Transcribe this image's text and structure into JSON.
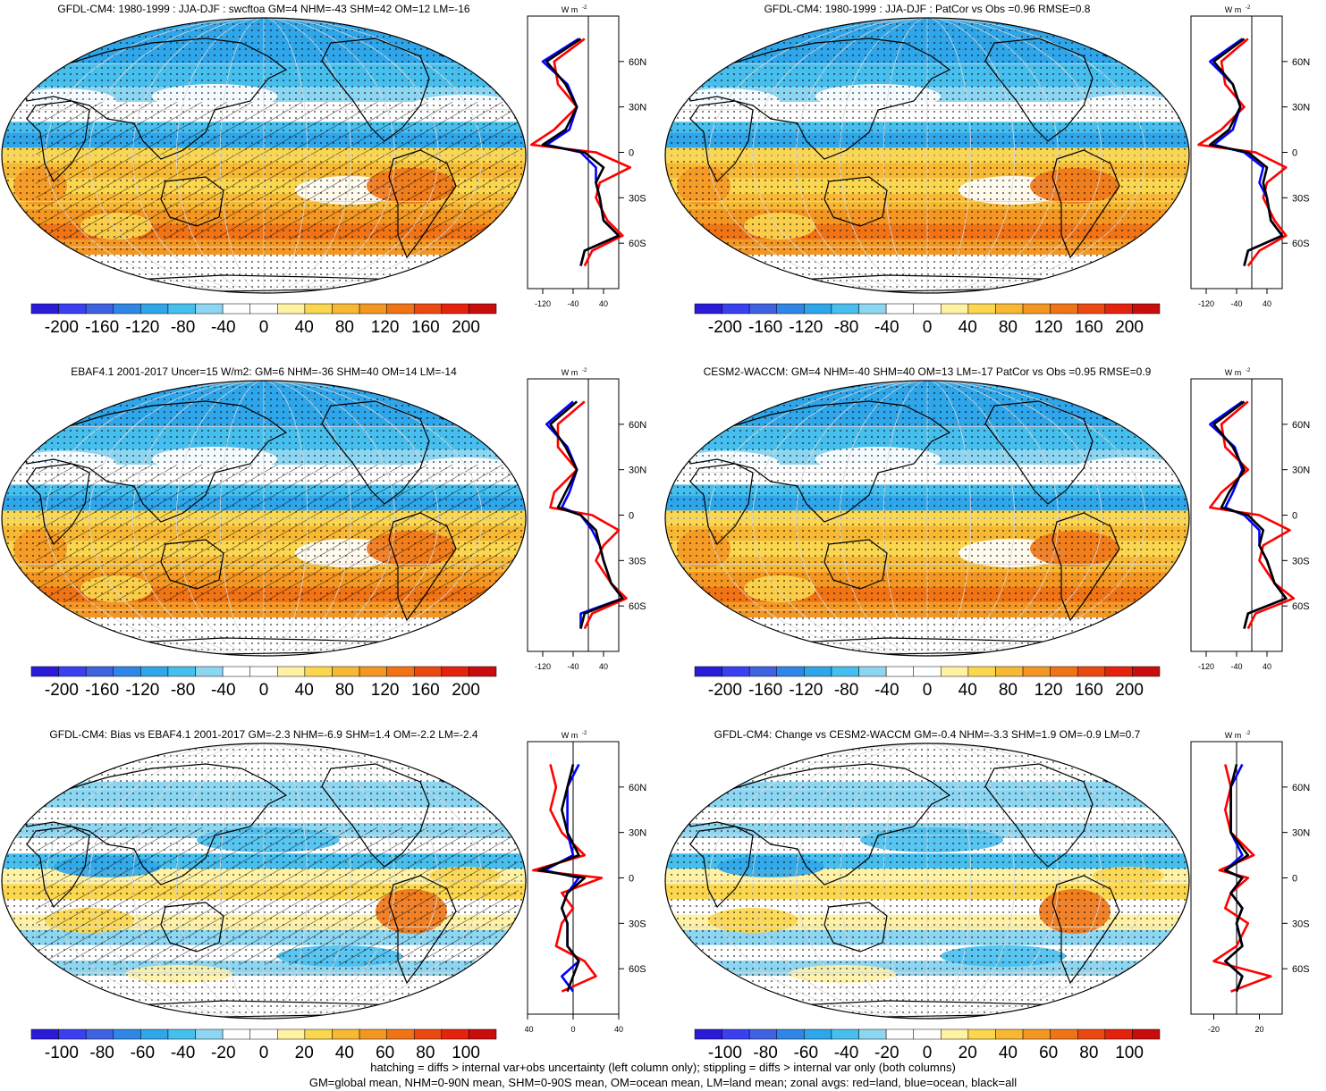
{
  "colors": {
    "scale": [
      "#2a1bd8",
      "#3a3ff0",
      "#3e63e0",
      "#2f86e6",
      "#2fa6ea",
      "#47bfee",
      "#8dd6f2",
      "#ffffff",
      "#ffffff",
      "#fff2a4",
      "#fbd64f",
      "#f7b834",
      "#f49722",
      "#f07416",
      "#ea4a12",
      "#e4220e",
      "#c90d0d"
    ],
    "land_line": "#000000",
    "zonal_all": "#000000",
    "zonal_land": "#ff0000",
    "zonal_ocean": "#0000ff"
  },
  "lat_labels": [
    "60N",
    "30N",
    "0",
    "30S",
    "60S"
  ],
  "zonal_unit": "W m",
  "zonal_unit_sup": "-2",
  "panels": [
    {
      "title": "GFDL-CM4: 1980-1999 : JJA-DJF : swcftoa GM=4 NHM=-43 SHM=42 OM=12 LM=-16",
      "pattern": "full",
      "hatch": true,
      "cbar_ticks": [
        "-200",
        "-160",
        "-120",
        "-80",
        "-40",
        "0",
        "40",
        "80",
        "120",
        "160",
        "200"
      ],
      "z_ticks": [
        "-120",
        "-40",
        "40"
      ]
    },
    {
      "title": "GFDL-CM4: 1980-1999 : JJA-DJF : PatCor vs Obs =0.96 RMSE=0.8",
      "pattern": "full",
      "hatch": false,
      "cbar_ticks": [
        "-200",
        "-160",
        "-120",
        "-80",
        "-40",
        "0",
        "40",
        "80",
        "120",
        "160",
        "200"
      ],
      "z_ticks": [
        "-120",
        "-40",
        "40"
      ]
    },
    {
      "title": "EBAF4.1 2001-2017 Uncer=15 W/m2: GM=6 NHM=-36 SHM=40 OM=14 LM=-14",
      "pattern": "full",
      "hatch": true,
      "cbar_ticks": [
        "-200",
        "-160",
        "-120",
        "-80",
        "-40",
        "0",
        "40",
        "80",
        "120",
        "160",
        "200"
      ],
      "z_ticks": [
        "-120",
        "-40",
        "40"
      ]
    },
    {
      "title": "CESM2-WACCM: GM=4 NHM=-40 SHM=40 OM=13 LM=-17 PatCor vs Obs =0.95 RMSE=0.9",
      "pattern": "full",
      "hatch": false,
      "cbar_ticks": [
        "-200",
        "-160",
        "-120",
        "-80",
        "-40",
        "0",
        "40",
        "80",
        "120",
        "160",
        "200"
      ],
      "z_ticks": [
        "-120",
        "-40",
        "40"
      ]
    },
    {
      "title": "GFDL-CM4: Bias vs EBAF4.1 2001-2017 GM=-2.3 NHM=-6.9 SHM=1.4 OM=-2.2 LM=-2.4",
      "pattern": "diff",
      "hatch": true,
      "cbar_ticks": [
        "-100",
        "-80",
        "-60",
        "-40",
        "-20",
        "0",
        "20",
        "40",
        "60",
        "80",
        "100"
      ],
      "z_ticks": [
        "-40",
        "0",
        "40"
      ]
    },
    {
      "title": "GFDL-CM4: Change vs CESM2-WACCM GM=-0.4 NHM=-3.3 SHM=1.9 OM=-0.9 LM=0.7",
      "pattern": "diff",
      "hatch": false,
      "cbar_ticks": [
        "-100",
        "-80",
        "-60",
        "-40",
        "-20",
        "0",
        "20",
        "40",
        "60",
        "80",
        "100"
      ],
      "z_ticks": [
        "-20",
        "20"
      ]
    }
  ],
  "footer": {
    "line1": "hatching = diffs > internal var+obs uncertainty (left column only); stippling = diffs > internal var only (both columns)",
    "line2": "GM=global mean, NHM=0-90N mean, SHM=0-90S mean, OM=ocean mean, LM=land mean; zonal avgs: red=land, blue=ocean, black=all"
  },
  "chart_data": [
    {
      "type": "heatmap",
      "title": "GFDL-CM4: 1980-1999 : JJA-DJF : swcftoa GM=4 NHM=-43 SHM=42 OM=12 LM=-16",
      "colorbar": {
        "ticks": [
          -200,
          -160,
          -120,
          -80,
          -40,
          0,
          40,
          80,
          120,
          160,
          200
        ]
      },
      "zonal_mean": {
        "lat": [
          75,
          60,
          45,
          30,
          15,
          5,
          0,
          -10,
          -20,
          -30,
          -45,
          -55,
          -65,
          -75
        ],
        "all": [
          -20,
          -110,
          -60,
          -30,
          -60,
          -120,
          -10,
          40,
          20,
          30,
          40,
          80,
          -10,
          -20
        ],
        "land": [
          -10,
          -90,
          -80,
          -30,
          -90,
          -150,
          20,
          110,
          30,
          20,
          50,
          90,
          10,
          -10
        ],
        "ocean": [
          -25,
          -120,
          -55,
          -30,
          -50,
          -110,
          -20,
          20,
          20,
          30,
          40,
          80,
          -10,
          -20
        ]
      }
    },
    {
      "type": "heatmap",
      "title": "GFDL-CM4: 1980-1999 : JJA-DJF : PatCor vs Obs =0.96 RMSE=0.8",
      "colorbar": {
        "ticks": [
          -200,
          -160,
          -120,
          -80,
          -40,
          0,
          40,
          80,
          120,
          160,
          200
        ]
      },
      "zonal_mean": {
        "lat": [
          75,
          60,
          45,
          30,
          15,
          5,
          0,
          -10,
          -20,
          -30,
          -45,
          -55,
          -65,
          -75
        ],
        "all": [
          -20,
          -100,
          -50,
          -30,
          -60,
          -110,
          -10,
          40,
          30,
          40,
          50,
          80,
          -10,
          -20
        ],
        "land": [
          -10,
          -80,
          -70,
          -20,
          -80,
          -140,
          10,
          90,
          40,
          30,
          60,
          90,
          20,
          -10
        ],
        "ocean": [
          -25,
          -110,
          -50,
          -30,
          -50,
          -100,
          -20,
          30,
          20,
          40,
          50,
          80,
          -10,
          -20
        ]
      }
    },
    {
      "type": "heatmap",
      "title": "EBAF4.1 2001-2017 Uncer=15 W/m2: GM=6 NHM=-36 SHM=40 OM=14 LM=-14",
      "colorbar": {
        "ticks": [
          -200,
          -160,
          -120,
          -80,
          -40,
          0,
          40,
          80,
          120,
          160,
          200
        ]
      },
      "zonal_mean": {
        "lat": [
          75,
          60,
          45,
          30,
          15,
          5,
          0,
          -10,
          -20,
          -30,
          -45,
          -55,
          -65,
          -75
        ],
        "all": [
          -30,
          -100,
          -60,
          -30,
          -60,
          -80,
          -20,
          20,
          30,
          40,
          60,
          90,
          -10,
          -20
        ],
        "land": [
          -10,
          -80,
          -80,
          -30,
          -90,
          -100,
          10,
          80,
          40,
          20,
          60,
          100,
          10,
          -10
        ],
        "ocean": [
          -40,
          -110,
          -55,
          -30,
          -50,
          -70,
          -20,
          10,
          30,
          40,
          60,
          90,
          -20,
          -20
        ]
      }
    },
    {
      "type": "heatmap",
      "title": "CESM2-WACCM: GM=4 NHM=-40 SHM=40 OM=13 LM=-17 PatCor vs Obs =0.95 RMSE=0.9",
      "colorbar": {
        "ticks": [
          -200,
          -160,
          -120,
          -80,
          -40,
          0,
          40,
          80,
          120,
          160,
          200
        ]
      },
      "zonal_mean": {
        "lat": [
          75,
          60,
          45,
          30,
          15,
          5,
          0,
          -10,
          -20,
          -30,
          -45,
          -55,
          -65,
          -75
        ],
        "all": [
          -20,
          -100,
          -50,
          -20,
          -60,
          -80,
          -10,
          30,
          20,
          40,
          60,
          90,
          -10,
          -20
        ],
        "land": [
          -10,
          -80,
          -70,
          -10,
          -80,
          -110,
          20,
          100,
          30,
          20,
          60,
          110,
          10,
          -10
        ],
        "ocean": [
          -25,
          -110,
          -45,
          -25,
          -50,
          -70,
          -20,
          20,
          20,
          40,
          60,
          90,
          -10,
          -20
        ]
      }
    },
    {
      "type": "heatmap",
      "title": "GFDL-CM4: Bias vs EBAF4.1 2001-2017 GM=-2.3 NHM=-6.9 SHM=1.4 OM=-2.2 LM=-2.4",
      "colorbar": {
        "ticks": [
          -100,
          -80,
          -60,
          -40,
          -20,
          0,
          20,
          40,
          60,
          80,
          100
        ]
      },
      "zonal_mean": {
        "lat": [
          75,
          60,
          45,
          30,
          15,
          5,
          0,
          -10,
          -20,
          -30,
          -45,
          -55,
          -65,
          -75
        ],
        "all": [
          0,
          -5,
          -10,
          -5,
          5,
          -30,
          10,
          -5,
          -10,
          -5,
          -5,
          5,
          0,
          -5
        ],
        "land": [
          -20,
          -15,
          -20,
          -10,
          10,
          -35,
          25,
          -10,
          0,
          -10,
          -15,
          10,
          20,
          -10
        ],
        "ocean": [
          5,
          -5,
          -5,
          -5,
          0,
          -25,
          5,
          -5,
          -10,
          -5,
          -5,
          5,
          -10,
          0
        ]
      }
    },
    {
      "type": "heatmap",
      "title": "GFDL-CM4: Change vs CESM2-WACCM GM=-0.4 NHM=-3.3 SHM=1.9 OM=-0.9 LM=0.7",
      "colorbar": {
        "ticks": [
          -100,
          -80,
          -60,
          -40,
          -20,
          0,
          20,
          40,
          60,
          80,
          100
        ]
      },
      "zonal_mean": {
        "lat": [
          75,
          60,
          45,
          30,
          15,
          5,
          0,
          -10,
          -20,
          -30,
          -45,
          -55,
          -65,
          -75
        ],
        "all": [
          0,
          -5,
          -5,
          -5,
          10,
          -10,
          5,
          -5,
          5,
          0,
          5,
          -10,
          5,
          0
        ],
        "land": [
          -10,
          -5,
          -10,
          -5,
          15,
          -15,
          10,
          -5,
          -10,
          10,
          0,
          -20,
          30,
          -5
        ],
        "ocean": [
          5,
          -5,
          -5,
          -5,
          5,
          -10,
          5,
          -5,
          5,
          0,
          5,
          -10,
          5,
          0
        ]
      }
    }
  ]
}
